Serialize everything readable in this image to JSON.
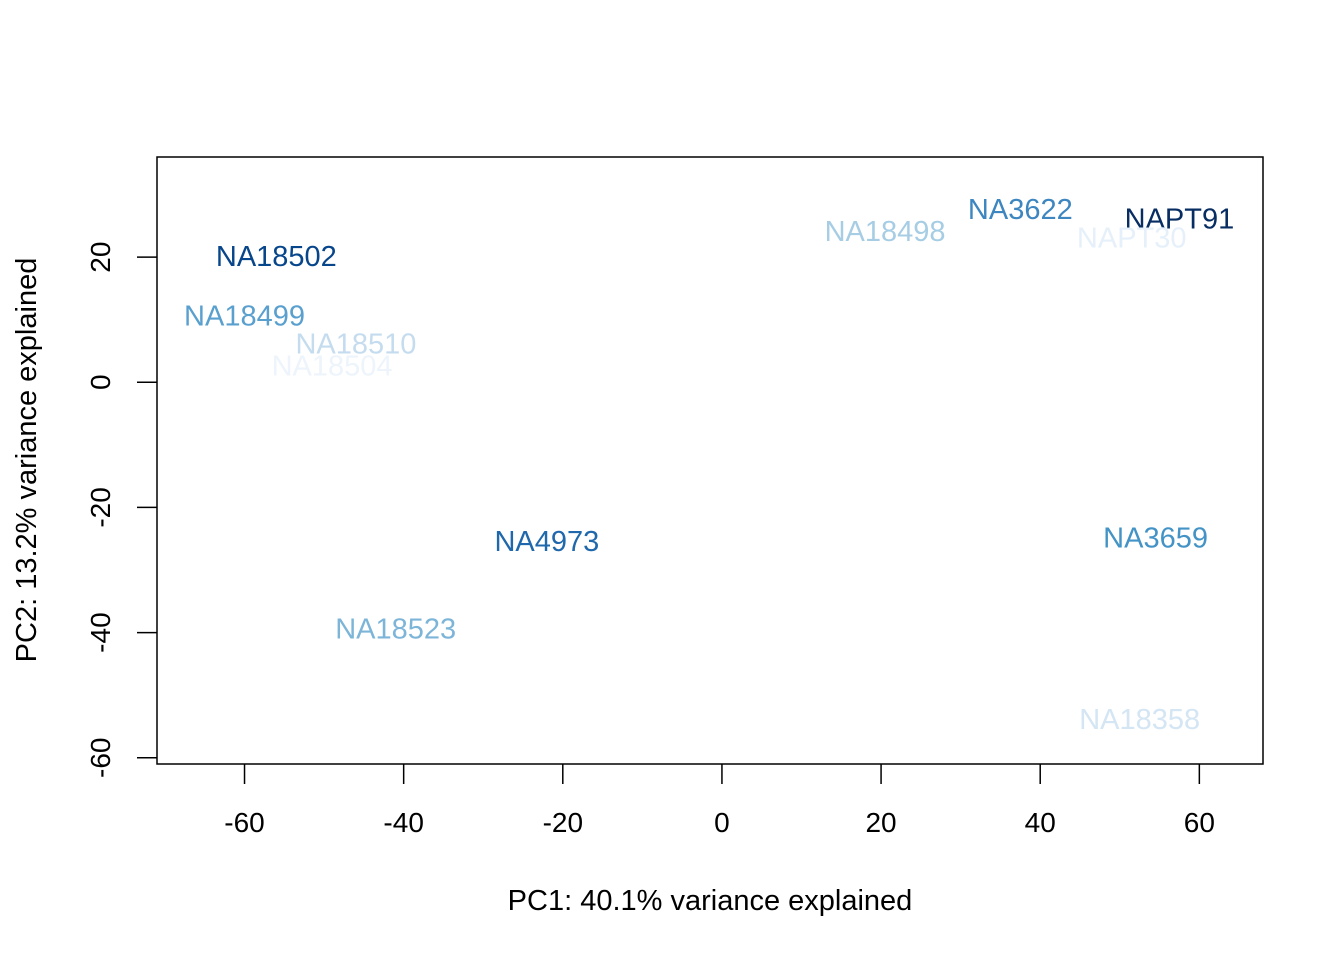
{
  "chart_data": {
    "type": "scatter",
    "title": "",
    "xlabel": "PC1: 40.1% variance explained",
    "ylabel": "PC2: 13.2% variance explained",
    "xlim": [
      -71,
      68
    ],
    "ylim": [
      -61,
      36
    ],
    "x_ticks": [
      -60,
      -40,
      -20,
      0,
      20,
      40,
      60
    ],
    "y_ticks": [
      -60,
      -40,
      -20,
      0,
      20
    ],
    "x_tick_labels": [
      "-60",
      "-40",
      "-20",
      "0",
      "20",
      "40",
      "60"
    ],
    "y_tick_labels": [
      "-60",
      "-40",
      "-20",
      "0",
      "20"
    ],
    "grid": false,
    "legend": "none",
    "marker": "text",
    "points": [
      {
        "label": "NA18502",
        "x": -56,
        "y": 20,
        "color": "#08468b"
      },
      {
        "label": "NA18499",
        "x": -60,
        "y": 10.5,
        "color": "#5aa0cf"
      },
      {
        "label": "NA18510",
        "x": -46,
        "y": 6,
        "color": "#c5dcef"
      },
      {
        "label": "NA18504",
        "x": -49,
        "y": 2.5,
        "color": "#edf4fb"
      },
      {
        "label": "NA4973",
        "x": -22,
        "y": -25.5,
        "color": "#2068ac"
      },
      {
        "label": "NA18523",
        "x": -41,
        "y": -39.5,
        "color": "#7db5d9"
      },
      {
        "label": "NA18498",
        "x": 20.5,
        "y": 24,
        "color": "#a7cde5"
      },
      {
        "label": "NA3622",
        "x": 37.5,
        "y": 27.5,
        "color": "#3d86c0"
      },
      {
        "label": "NAPT91",
        "x": 57.5,
        "y": 26,
        "color": "#072d63"
      },
      {
        "label": "NAPT30",
        "x": 51.5,
        "y": 23,
        "color": "#e6f0fa"
      },
      {
        "label": "NA3659",
        "x": 54.5,
        "y": -25,
        "color": "#4393c6"
      },
      {
        "label": "NA18358",
        "x": 52.5,
        "y": -54,
        "color": "#d4e5f4"
      }
    ]
  }
}
